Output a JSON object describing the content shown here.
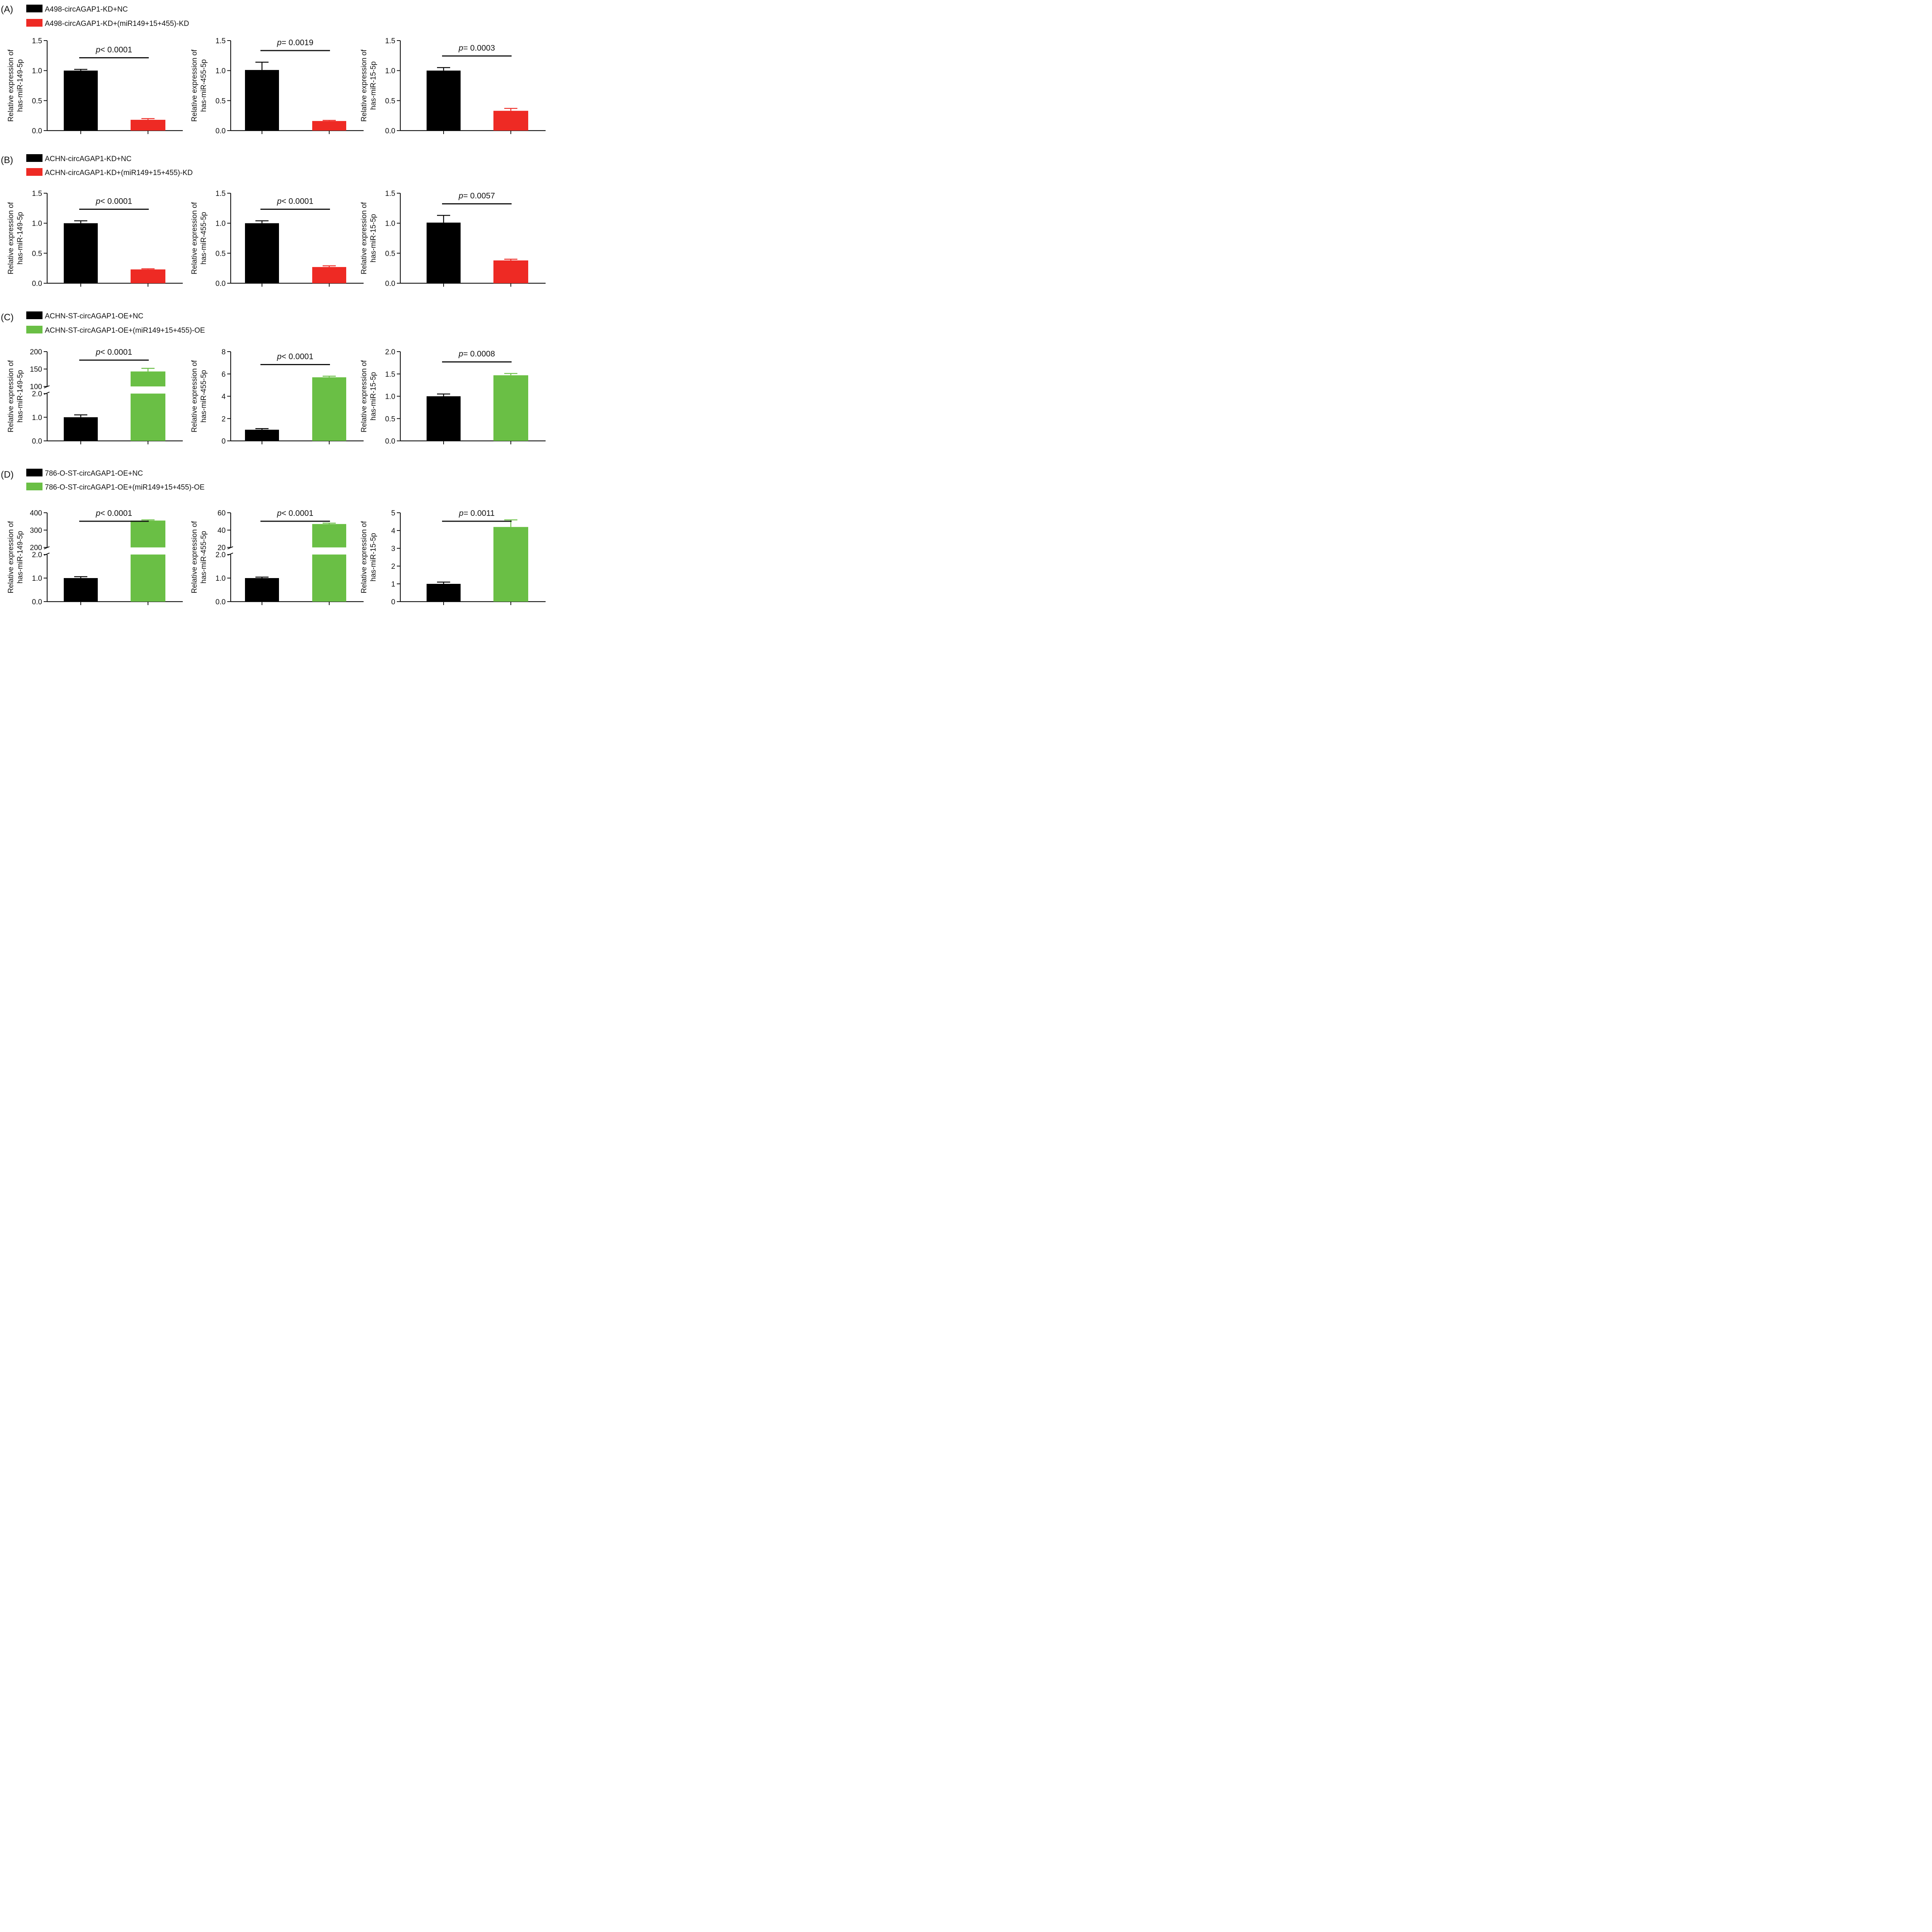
{
  "colors": {
    "black": "#000000",
    "red": "#ee2a24",
    "green": "#6abf45",
    "axis": "#111111"
  },
  "rows": [
    {
      "label": "(A)",
      "legend": [
        {
          "text": "A498-circAGAP1-KD+NC",
          "color": "#000000"
        },
        {
          "text": "A498-circAGAP1-KD+(miR149+15+455)-KD",
          "color": "#ee2a24"
        }
      ]
    },
    {
      "label": "(B)",
      "legend": [
        {
          "text": "ACHN-circAGAP1-KD+NC",
          "color": "#000000"
        },
        {
          "text": "ACHN-circAGAP1-KD+(miR149+15+455)-KD",
          "color": "#ee2a24"
        }
      ]
    },
    {
      "label": "(C)",
      "legend": [
        {
          "text": "ACHN-ST-circAGAP1-OE+NC",
          "color": "#000000"
        },
        {
          "text": "ACHN-ST-circAGAP1-OE+(miR149+15+455)-OE",
          "color": "#6abf45"
        }
      ]
    },
    {
      "label": "(D)",
      "legend": [
        {
          "text": "786-O-ST-circAGAP1-OE+NC",
          "color": "#000000"
        },
        {
          "text": "786-O-ST-circAGAP1-OE+(miR149+15+455)-OE",
          "color": "#6abf45"
        }
      ]
    }
  ],
  "chart_data": [
    {
      "panel": "A",
      "type": "bar",
      "ylabel": [
        "Relative expression of",
        "has-miR-149-5p"
      ],
      "ylim": [
        0,
        1.5
      ],
      "yticks": [
        0.0,
        0.5,
        1.0,
        1.5
      ],
      "tick_labels": [
        "0.0",
        "0.5",
        "1.0",
        "1.5"
      ],
      "values": [
        1.0,
        0.18
      ],
      "errors": [
        0.02,
        0.02
      ],
      "colors": [
        "#000000",
        "#ee2a24"
      ],
      "p_prefix": "p",
      "p_text": "< 0.0001"
    },
    {
      "panel": "A",
      "type": "bar",
      "ylabel": [
        "Relative expression of",
        "has-miR-455-5p"
      ],
      "ylim": [
        0,
        1.5
      ],
      "yticks": [
        0.0,
        0.5,
        1.0,
        1.5
      ],
      "tick_labels": [
        "0.0",
        "0.5",
        "1.0",
        "1.5"
      ],
      "values": [
        1.01,
        0.16
      ],
      "errors": [
        0.13,
        0.01
      ],
      "colors": [
        "#000000",
        "#ee2a24"
      ],
      "p_prefix": "p",
      "p_text": "= 0.0019"
    },
    {
      "panel": "A",
      "type": "bar",
      "ylabel": [
        "Relative expression of",
        "has-miR-15-5p"
      ],
      "ylim": [
        0,
        1.5
      ],
      "yticks": [
        0.0,
        0.5,
        1.0,
        1.5
      ],
      "tick_labels": [
        "0.0",
        "0.5",
        "1.0",
        "1.5"
      ],
      "values": [
        1.0,
        0.33
      ],
      "errors": [
        0.05,
        0.04
      ],
      "colors": [
        "#000000",
        "#ee2a24"
      ],
      "p_prefix": "p",
      "p_text": "= 0.0003"
    },
    {
      "panel": "B",
      "type": "bar",
      "ylabel": [
        "Relative expression of",
        "has-miR-149-5p"
      ],
      "ylim": [
        0,
        1.5
      ],
      "yticks": [
        0.0,
        0.5,
        1.0,
        1.5
      ],
      "tick_labels": [
        "0.0",
        "0.5",
        "1.0",
        "1.5"
      ],
      "values": [
        1.0,
        0.23
      ],
      "errors": [
        0.04,
        0.01
      ],
      "colors": [
        "#000000",
        "#ee2a24"
      ],
      "p_prefix": "p",
      "p_text": "< 0.0001"
    },
    {
      "panel": "B",
      "type": "bar",
      "ylabel": [
        "Relative expression of",
        "has-miR-455-5p"
      ],
      "ylim": [
        0,
        1.5
      ],
      "yticks": [
        0.0,
        0.5,
        1.0,
        1.5
      ],
      "tick_labels": [
        "0.0",
        "0.5",
        "1.0",
        "1.5"
      ],
      "values": [
        1.0,
        0.27
      ],
      "errors": [
        0.04,
        0.02
      ],
      "colors": [
        "#000000",
        "#ee2a24"
      ],
      "p_prefix": "p",
      "p_text": "< 0.0001"
    },
    {
      "panel": "B",
      "type": "bar",
      "ylabel": [
        "Relative expression of",
        "has-miR-15-5p"
      ],
      "ylim": [
        0,
        1.5
      ],
      "yticks": [
        0.0,
        0.5,
        1.0,
        1.5
      ],
      "tick_labels": [
        "0.0",
        "0.5",
        "1.0",
        "1.5"
      ],
      "values": [
        1.01,
        0.38
      ],
      "errors": [
        0.12,
        0.02
      ],
      "colors": [
        "#000000",
        "#ee2a24"
      ],
      "p_prefix": "p",
      "p_text": "= 0.0057"
    },
    {
      "panel": "C",
      "type": "bar",
      "broken": true,
      "ylabel": [
        "Relative expression of",
        "has-miR-149-5p"
      ],
      "lower": {
        "range": [
          0,
          2
        ],
        "ticks": [
          0.0,
          1.0,
          2.0
        ],
        "tick_labels": [
          "0.0",
          "1.0",
          "2.0"
        ]
      },
      "upper": {
        "range": [
          100,
          200
        ],
        "ticks": [
          100,
          150,
          200
        ],
        "tick_labels": [
          "100",
          "150",
          "200"
        ]
      },
      "values": [
        1.0,
        143
      ],
      "errors": [
        0.1,
        9
      ],
      "colors": [
        "#000000",
        "#6abf45"
      ],
      "p_prefix": "p",
      "p_text": "< 0.0001"
    },
    {
      "panel": "C",
      "type": "bar",
      "ylabel": [
        "Relative expression of",
        "has-miR-455-5p"
      ],
      "ylim": [
        0,
        8
      ],
      "yticks": [
        0,
        2,
        4,
        6,
        8
      ],
      "tick_labels": [
        "0",
        "2",
        "4",
        "6",
        "8"
      ],
      "values": [
        1.0,
        5.7
      ],
      "errors": [
        0.1,
        0.1
      ],
      "colors": [
        "#000000",
        "#6abf45"
      ],
      "p_prefix": "p",
      "p_text": "< 0.0001"
    },
    {
      "panel": "C",
      "type": "bar",
      "ylabel": [
        "Relative expression of",
        "has-miR-15-5p"
      ],
      "ylim": [
        0,
        2
      ],
      "yticks": [
        0.0,
        0.5,
        1.0,
        1.5,
        2.0
      ],
      "tick_labels": [
        "0.0",
        "0.5",
        "1.0",
        "1.5",
        "2.0"
      ],
      "values": [
        1.0,
        1.47
      ],
      "errors": [
        0.05,
        0.04
      ],
      "colors": [
        "#000000",
        "#6abf45"
      ],
      "p_prefix": "p",
      "p_text": "= 0.0008"
    },
    {
      "panel": "D",
      "type": "bar",
      "broken": true,
      "ylabel": [
        "Relative expression of",
        "has-miR-149-5p"
      ],
      "lower": {
        "range": [
          0,
          2
        ],
        "ticks": [
          0.0,
          1.0,
          2.0
        ],
        "tick_labels": [
          "0.0",
          "1.0",
          "2.0"
        ]
      },
      "upper": {
        "range": [
          200,
          400
        ],
        "ticks": [
          200,
          300,
          400
        ],
        "tick_labels": [
          "200",
          "300",
          "400"
        ]
      },
      "values": [
        1.0,
        355
      ],
      "errors": [
        0.06,
        4
      ],
      "colors": [
        "#000000",
        "#6abf45"
      ],
      "p_prefix": "p",
      "p_text": "< 0.0001"
    },
    {
      "panel": "D",
      "type": "bar",
      "broken": true,
      "ylabel": [
        "Relative expression of",
        "has-miR-455-5p"
      ],
      "lower": {
        "range": [
          0,
          2
        ],
        "ticks": [
          0.0,
          1.0,
          2.0
        ],
        "tick_labels": [
          "0.0",
          "1.0",
          "2.0"
        ]
      },
      "upper": {
        "range": [
          20,
          60
        ],
        "ticks": [
          20,
          40,
          60
        ],
        "tick_labels": [
          "20",
          "40",
          "60"
        ]
      },
      "values": [
        1.0,
        47
      ],
      "errors": [
        0.04,
        1
      ],
      "colors": [
        "#000000",
        "#6abf45"
      ],
      "p_prefix": "p",
      "p_text": "< 0.0001"
    },
    {
      "panel": "D",
      "type": "bar",
      "ylabel": [
        "Relative expression of",
        "has-miR-15-5p"
      ],
      "ylim": [
        0,
        5
      ],
      "yticks": [
        0,
        1,
        2,
        3,
        4,
        5
      ],
      "tick_labels": [
        "0",
        "1",
        "2",
        "3",
        "4",
        "5"
      ],
      "values": [
        1.0,
        4.2
      ],
      "errors": [
        0.1,
        0.4
      ],
      "colors": [
        "#000000",
        "#6abf45"
      ],
      "p_prefix": "p",
      "p_text": "= 0.0011"
    }
  ]
}
